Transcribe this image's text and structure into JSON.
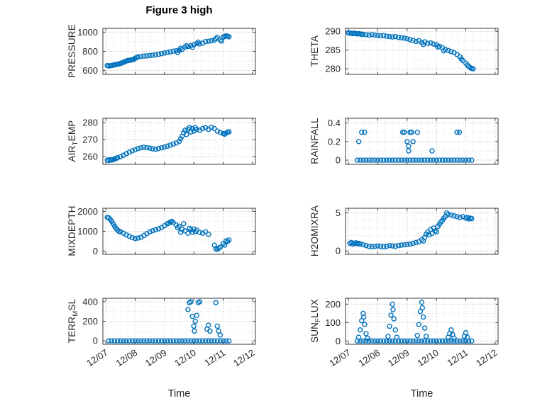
{
  "title": "Figure 3 high",
  "xlabel": "Time",
  "figure": {
    "accent": "#0072BD",
    "axis_color": "#3b3b3b",
    "grid_major": "#b5b5b5",
    "grid_minor": "#dcdcdc",
    "label_color": "#262626"
  },
  "x_axis": {
    "xlim": [
      6.9,
      12.1
    ],
    "minor_step": 0.25,
    "ticks": [
      {
        "value": 7,
        "label": "12/07"
      },
      {
        "value": 8,
        "label": "12/08"
      },
      {
        "value": 9,
        "label": "12/09"
      },
      {
        "value": 10,
        "label": "12/10"
      },
      {
        "value": 11,
        "label": "12/11"
      },
      {
        "value": 12,
        "label": "12/12"
      }
    ]
  },
  "chart_data": [
    {
      "name": "pressure",
      "type": "scatter",
      "marker": "circle-open",
      "ylabel": {
        "pre": "PRESSURE",
        "sub": "",
        "post": ""
      },
      "ylim": [
        560,
        1040
      ],
      "yticks": [
        600,
        800,
        1000
      ],
      "ytick_labels": [
        "600",
        "800",
        "1000"
      ],
      "yminor_step": 100,
      "x": [
        7.05,
        7.1,
        7.15,
        7.2,
        7.25,
        7.3,
        7.35,
        7.4,
        7.45,
        7.5,
        7.55,
        7.6,
        7.65,
        7.7,
        7.75,
        7.8,
        7.85,
        7.9,
        7.95,
        8.0,
        8.05,
        8.1,
        8.2,
        8.3,
        8.4,
        8.5,
        8.6,
        8.7,
        8.8,
        8.9,
        9.0,
        9.1,
        9.2,
        9.3,
        9.4,
        9.45,
        9.5,
        9.55,
        9.6,
        9.7,
        9.75,
        9.8,
        9.9,
        9.95,
        10.0,
        10.1,
        10.15,
        10.2,
        10.3,
        10.4,
        10.5,
        10.6,
        10.7,
        10.75,
        10.8,
        10.9,
        10.95,
        11.0,
        11.05,
        11.1,
        11.15,
        11.2
      ],
      "y": [
        652,
        648,
        650,
        653,
        656,
        660,
        663,
        666,
        670,
        674,
        680,
        686,
        692,
        700,
        704,
        707,
        710,
        713,
        716,
        728,
        735,
        742,
        748,
        751,
        753,
        756,
        760,
        764,
        770,
        776,
        782,
        790,
        796,
        802,
        806,
        788,
        812,
        832,
        820,
        846,
        858,
        851,
        860,
        842,
        868,
        882,
        896,
        878,
        886,
        902,
        906,
        910,
        916,
        932,
        946,
        918,
        908,
        948,
        956,
        962,
        958,
        952
      ]
    },
    {
      "name": "theta",
      "type": "scatter",
      "marker": "circle-open",
      "ylabel": {
        "pre": "THETA",
        "sub": "",
        "post": ""
      },
      "ylim": [
        278.5,
        290.8
      ],
      "yticks": [
        280,
        285,
        290
      ],
      "ytick_labels": [
        "280",
        "285",
        "290"
      ],
      "yminor_step": 2.5,
      "x": [
        7.0,
        7.05,
        7.1,
        7.15,
        7.2,
        7.25,
        7.3,
        7.35,
        7.4,
        7.45,
        7.5,
        7.6,
        7.7,
        7.8,
        7.9,
        8.0,
        8.1,
        8.2,
        8.3,
        8.4,
        8.5,
        8.6,
        8.7,
        8.8,
        8.9,
        9.0,
        9.1,
        9.2,
        9.3,
        9.4,
        9.5,
        9.55,
        9.6,
        9.7,
        9.8,
        9.9,
        10.0,
        10.05,
        10.1,
        10.2,
        10.25,
        10.3,
        10.4,
        10.5,
        10.6,
        10.7,
        10.8,
        10.85,
        10.9,
        11.0,
        11.05,
        11.1,
        11.15,
        11.2,
        11.25
      ],
      "y": [
        289.6,
        289.5,
        289.5,
        289.4,
        289.5,
        289.4,
        289.3,
        289.4,
        289.3,
        289.2,
        289.2,
        289.1,
        289.0,
        289.1,
        289.0,
        288.9,
        288.8,
        288.9,
        288.7,
        288.6,
        288.5,
        288.6,
        288.4,
        288.3,
        288.2,
        288.0,
        287.8,
        287.6,
        287.3,
        287.5,
        287.0,
        286.5,
        287.2,
        286.8,
        286.9,
        286.6,
        286.4,
        285.8,
        286.0,
        285.6,
        284.8,
        285.2,
        284.9,
        284.6,
        284.3,
        283.8,
        283.2,
        282.6,
        282.2,
        281.5,
        281.0,
        280.6,
        280.3,
        280.1,
        280.0
      ]
    },
    {
      "name": "air_temp",
      "type": "scatter",
      "marker": "circle-open",
      "ylabel": {
        "pre": "AIR",
        "sub": "T",
        "post": "EMP"
      },
      "ylim": [
        255.5,
        282.5
      ],
      "yticks": [
        260,
        270,
        280
      ],
      "ytick_labels": [
        "260",
        "270",
        "280"
      ],
      "yminor_step": 5,
      "x": [
        7.05,
        7.1,
        7.15,
        7.2,
        7.25,
        7.3,
        7.35,
        7.4,
        7.5,
        7.6,
        7.7,
        7.8,
        7.9,
        8.0,
        8.1,
        8.2,
        8.3,
        8.4,
        8.5,
        8.6,
        8.7,
        8.8,
        8.9,
        9.0,
        9.1,
        9.2,
        9.3,
        9.4,
        9.5,
        9.55,
        9.6,
        9.65,
        9.7,
        9.75,
        9.8,
        9.85,
        9.9,
        9.95,
        10.0,
        10.05,
        10.1,
        10.2,
        10.3,
        10.4,
        10.5,
        10.6,
        10.7,
        10.8,
        10.9,
        11.0,
        11.05,
        11.1,
        11.15,
        11.2
      ],
      "y": [
        258,
        257.8,
        258.2,
        258,
        258.3,
        258.6,
        259,
        259.4,
        260,
        260.8,
        261.8,
        262.6,
        263.4,
        264,
        264.8,
        265.2,
        265.5,
        265.3,
        265,
        264.6,
        264.4,
        264.8,
        265.2,
        265.6,
        266.2,
        266.8,
        267.4,
        268,
        269,
        270.5,
        272,
        274,
        275.5,
        273,
        276,
        277,
        274.5,
        276.5,
        275,
        277,
        276,
        275.5,
        276.5,
        277,
        276,
        277.2,
        276.5,
        275,
        274.2,
        273.6,
        273.2,
        273.8,
        274.4,
        274.6
      ]
    },
    {
      "name": "rainfall",
      "type": "scatter",
      "marker": "circle-open",
      "ylabel": {
        "pre": "RAINFALL",
        "sub": "",
        "post": ""
      },
      "ylim": [
        -0.045,
        0.45
      ],
      "yticks": [
        0,
        0.2,
        0.4
      ],
      "ytick_labels": [
        "0",
        "0.2",
        "0.4"
      ],
      "yminor_step": 0.1,
      "x": [
        7.3,
        7.4,
        7.5,
        7.6,
        7.7,
        7.8,
        7.9,
        8.0,
        8.1,
        8.2,
        8.3,
        8.4,
        8.5,
        8.6,
        8.7,
        8.8,
        8.9,
        9.0,
        9.1,
        9.2,
        9.3,
        9.4,
        9.5,
        9.6,
        9.7,
        9.8,
        9.9,
        10.0,
        10.1,
        10.2,
        10.3,
        10.4,
        10.5,
        10.6,
        10.7,
        10.8,
        10.9,
        11.0,
        11.1,
        11.2,
        7.35,
        7.45,
        7.55,
        8.85,
        8.9,
        9.0,
        9.05,
        9.05,
        9.1,
        9.15,
        9.2,
        9.35,
        9.85,
        10.7,
        10.78
      ],
      "y": [
        0,
        0,
        0,
        0,
        0,
        0,
        0,
        0,
        0,
        0,
        0,
        0,
        0,
        0,
        0,
        0,
        0,
        0,
        0,
        0,
        0,
        0,
        0,
        0,
        0,
        0,
        0,
        0,
        0,
        0,
        0,
        0,
        0,
        0,
        0,
        0,
        0,
        0,
        0,
        0,
        0.2,
        0.3,
        0.3,
        0.3,
        0.3,
        0.2,
        0.15,
        0.1,
        0.3,
        0.3,
        0.2,
        0.3,
        0.1,
        0.3,
        0.3
      ]
    },
    {
      "name": "mixdepth",
      "type": "scatter",
      "marker": "circle-open",
      "ylabel": {
        "pre": "MIXDEPTH",
        "sub": "",
        "post": ""
      },
      "ylim": [
        -160,
        2160
      ],
      "yticks": [
        0,
        1000,
        2000
      ],
      "ytick_labels": [
        "0",
        "1000",
        "2000"
      ],
      "yminor_step": 500,
      "x": [
        7.05,
        7.1,
        7.15,
        7.2,
        7.25,
        7.3,
        7.35,
        7.4,
        7.45,
        7.5,
        7.6,
        7.7,
        7.8,
        7.9,
        8.0,
        8.1,
        8.2,
        8.3,
        8.4,
        8.5,
        8.6,
        8.7,
        8.8,
        8.9,
        9.0,
        9.1,
        9.15,
        9.2,
        9.25,
        9.3,
        9.4,
        9.45,
        9.5,
        9.55,
        9.6,
        9.65,
        9.7,
        9.8,
        9.85,
        9.9,
        9.95,
        10.0,
        10.05,
        10.1,
        10.2,
        10.3,
        10.4,
        10.5,
        10.7,
        10.75,
        10.8,
        10.85,
        10.9,
        11.0,
        11.05,
        11.1,
        11.15,
        11.2
      ],
      "y": [
        1700,
        1680,
        1600,
        1500,
        1380,
        1260,
        1150,
        1060,
        1000,
        980,
        900,
        820,
        750,
        680,
        640,
        660,
        700,
        790,
        880,
        970,
        1030,
        1080,
        1130,
        1190,
        1280,
        1380,
        1420,
        1460,
        1500,
        1430,
        1320,
        1180,
        1250,
        950,
        1100,
        1380,
        1020,
        900,
        1150,
        1080,
        950,
        1120,
        980,
        1060,
        950,
        900,
        980,
        850,
        300,
        120,
        100,
        150,
        200,
        380,
        300,
        520,
        480,
        560
      ]
    },
    {
      "name": "h2omixra",
      "type": "scatter",
      "marker": "circle-open",
      "ylabel": {
        "pre": "H2OMIXRA",
        "sub": "",
        "post": ""
      },
      "ylim": [
        -0.45,
        5.6
      ],
      "yticks": [
        0,
        5
      ],
      "ytick_labels": [
        "0",
        "5"
      ],
      "yminor_step": 1,
      "x": [
        7.05,
        7.1,
        7.15,
        7.2,
        7.25,
        7.3,
        7.35,
        7.4,
        7.5,
        7.6,
        7.7,
        7.8,
        7.9,
        8.0,
        8.1,
        8.2,
        8.3,
        8.4,
        8.5,
        8.6,
        8.7,
        8.8,
        8.9,
        9.0,
        9.1,
        9.2,
        9.3,
        9.4,
        9.5,
        9.55,
        9.6,
        9.65,
        9.7,
        9.75,
        9.8,
        9.85,
        9.9,
        9.95,
        10.0,
        10.05,
        10.1,
        10.15,
        10.2,
        10.25,
        10.3,
        10.35,
        10.4,
        10.5,
        10.6,
        10.7,
        10.8,
        10.9,
        11.0,
        11.05,
        11.1,
        11.15,
        11.2
      ],
      "y": [
        1.0,
        1.1,
        0.9,
        1.0,
        1.05,
        0.95,
        1.0,
        0.9,
        0.8,
        0.7,
        0.6,
        0.55,
        0.6,
        0.65,
        0.6,
        0.55,
        0.6,
        0.7,
        0.65,
        0.6,
        0.7,
        0.75,
        0.8,
        0.85,
        0.9,
        1.0,
        1.1,
        1.2,
        1.5,
        1.3,
        1.8,
        2.2,
        2.5,
        2.1,
        2.8,
        2.3,
        3.0,
        2.6,
        2.5,
        3.2,
        3.5,
        3.8,
        4.0,
        4.3,
        4.5,
        5.0,
        4.8,
        4.7,
        4.6,
        4.5,
        4.4,
        4.5,
        4.3,
        4.4,
        4.2,
        4.3,
        4.25
      ]
    },
    {
      "name": "terr_msl",
      "type": "scatter",
      "marker": "circle-open",
      "ylabel": {
        "pre": "TERR",
        "sub": "M",
        "post": "SL"
      },
      "ylim": [
        -35,
        435
      ],
      "yticks": [
        0,
        200,
        400
      ],
      "ytick_labels": [
        "0",
        "200",
        "400"
      ],
      "yminor_step": 100,
      "x": [
        7.1,
        7.2,
        7.3,
        7.4,
        7.5,
        7.6,
        7.7,
        7.8,
        7.9,
        8.0,
        8.1,
        8.2,
        8.3,
        8.4,
        8.5,
        8.6,
        8.7,
        8.8,
        8.9,
        9.0,
        9.1,
        9.2,
        9.3,
        9.4,
        9.5,
        9.6,
        9.7,
        9.8,
        9.9,
        10.0,
        10.1,
        10.2,
        10.3,
        10.4,
        10.5,
        10.6,
        10.7,
        10.8,
        10.9,
        11.0,
        11.1,
        11.2,
        9.8,
        9.85,
        9.9,
        9.95,
        10.0,
        10.02,
        10.05,
        10.1,
        10.15,
        10.2,
        10.45,
        10.5,
        10.55,
        10.75,
        10.8,
        10.85,
        10.9
      ],
      "y": [
        0,
        0,
        0,
        0,
        0,
        0,
        0,
        0,
        0,
        0,
        0,
        0,
        0,
        0,
        0,
        0,
        0,
        0,
        0,
        0,
        0,
        0,
        0,
        0,
        0,
        0,
        0,
        0,
        0,
        0,
        0,
        0,
        0,
        0,
        0,
        0,
        0,
        0,
        0,
        0,
        0,
        0,
        320,
        390,
        400,
        250,
        150,
        100,
        200,
        260,
        390,
        400,
        120,
        160,
        100,
        390,
        150,
        100,
        60
      ]
    },
    {
      "name": "sun_flux",
      "type": "scatter",
      "marker": "circle-open",
      "ylabel": {
        "pre": "SUN",
        "sub": "F",
        "post": "LUX"
      },
      "ylim": [
        -18,
        232
      ],
      "yticks": [
        0,
        100,
        200
      ],
      "ytick_labels": [
        "0",
        "100",
        "200"
      ],
      "yminor_step": 50,
      "x": [
        7.3,
        7.4,
        7.5,
        7.6,
        7.7,
        7.8,
        7.9,
        8.0,
        8.1,
        8.2,
        8.3,
        8.4,
        8.5,
        8.6,
        8.7,
        8.8,
        8.9,
        9.0,
        9.1,
        9.2,
        9.3,
        9.4,
        9.5,
        9.6,
        9.7,
        9.8,
        9.9,
        10.0,
        10.1,
        10.2,
        10.3,
        10.4,
        10.5,
        10.6,
        10.7,
        10.8,
        10.9,
        11.0,
        11.1,
        11.2,
        7.35,
        7.4,
        7.45,
        7.5,
        7.52,
        7.55,
        7.6,
        7.65,
        8.35,
        8.4,
        8.45,
        8.5,
        8.52,
        8.55,
        8.6,
        8.65,
        9.35,
        9.4,
        9.45,
        9.5,
        9.52,
        9.55,
        9.6,
        9.65,
        10.4,
        10.45,
        10.5,
        10.55,
        10.6,
        10.95,
        11.0,
        11.05
      ],
      "y": [
        0,
        0,
        0,
        0,
        0,
        0,
        0,
        0,
        0,
        0,
        0,
        0,
        0,
        0,
        0,
        0,
        0,
        0,
        0,
        0,
        0,
        0,
        0,
        0,
        0,
        0,
        0,
        0,
        0,
        0,
        0,
        0,
        0,
        0,
        0,
        0,
        0,
        0,
        0,
        0,
        20,
        60,
        110,
        150,
        130,
        90,
        40,
        15,
        25,
        80,
        140,
        200,
        170,
        120,
        60,
        20,
        30,
        90,
        160,
        210,
        180,
        130,
        70,
        25,
        20,
        40,
        60,
        35,
        15,
        25,
        45,
        20
      ]
    }
  ]
}
